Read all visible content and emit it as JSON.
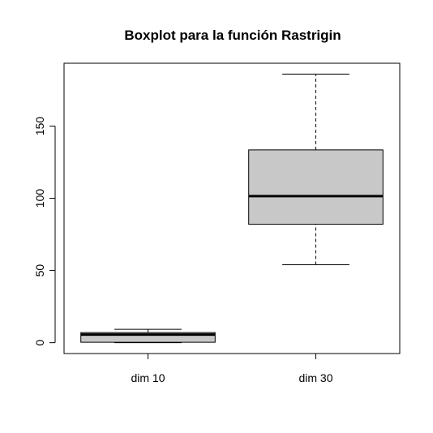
{
  "chart_data": {
    "type": "boxplot",
    "title": "Boxplot para la función Rastrigin",
    "xlabel": "",
    "ylabel": "",
    "categories": [
      "dim 10",
      "dim 30"
    ],
    "boxes": [
      {
        "category": "dim 10",
        "whisker_low": 0.0,
        "q1": 0.3,
        "median": 5.6,
        "q3": 7.0,
        "whisker_high": 9.3
      },
      {
        "category": "dim 30",
        "whisker_low": 54.0,
        "q1": 82.0,
        "median": 101.5,
        "q3": 133.5,
        "whisker_high": 186.0
      }
    ],
    "ylim": [
      -7.5,
      193.5
    ],
    "yticks": [
      0,
      50,
      100,
      150
    ],
    "ytick_labels": [
      "0",
      "50",
      "100",
      "150"
    ],
    "box_fill": "#c8c8c8",
    "grid": false
  }
}
